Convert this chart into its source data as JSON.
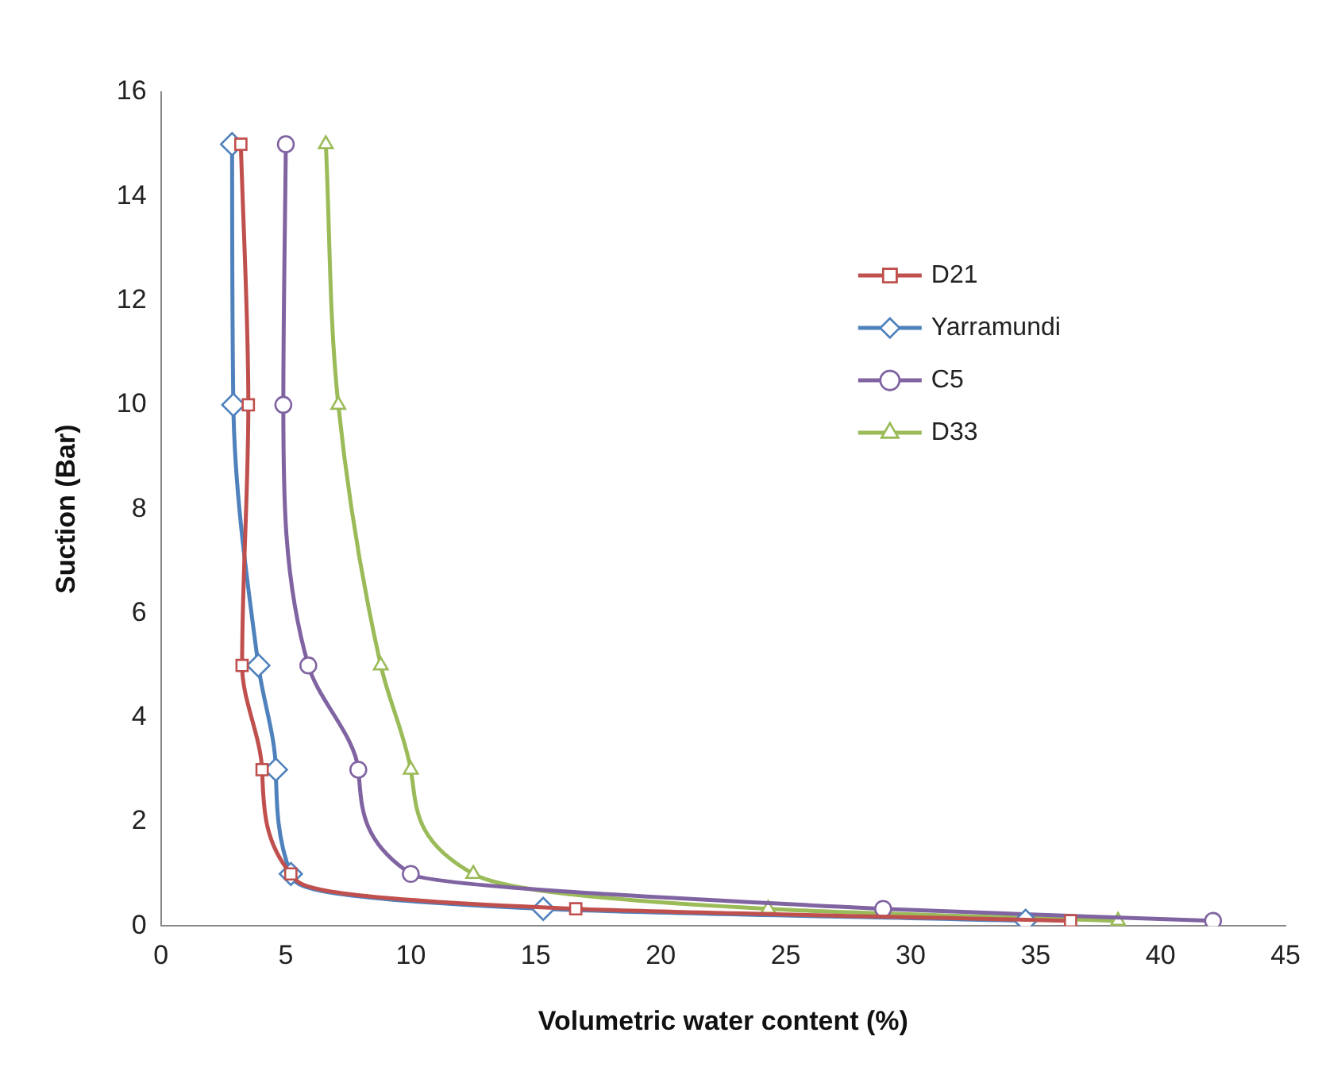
{
  "chart_data": {
    "type": "line",
    "xlabel": "Volumetric water content (%)",
    "ylabel": "Suction (Bar)",
    "xlim": [
      0,
      45
    ],
    "xticks": [
      0,
      5,
      10,
      15,
      20,
      25,
      30,
      35,
      40,
      45
    ],
    "ylim": [
      0,
      16
    ],
    "yticks": [
      0,
      2,
      4,
      6,
      8,
      10,
      12,
      14,
      16
    ],
    "grid": false,
    "legend": "right",
    "series": [
      {
        "name": "D21",
        "color": "#c0504d",
        "marker": "square",
        "x": [
          3.2,
          3.5,
          3.25,
          4.05,
          5.2,
          16.6,
          36.4
        ],
        "values": [
          15,
          10,
          5,
          3,
          1,
          0.33,
          0.1
        ]
      },
      {
        "name": "Yarramundi",
        "color": "#4f81bd",
        "marker": "diamond",
        "x": [
          2.85,
          2.9,
          3.9,
          4.6,
          5.2,
          15.3,
          34.6
        ],
        "values": [
          15,
          10,
          5,
          3,
          1,
          0.33,
          0.1
        ]
      },
      {
        "name": "C5",
        "color": "#8064a2",
        "marker": "circle",
        "x": [
          5.0,
          4.9,
          5.9,
          7.9,
          10.0,
          28.9,
          42.1
        ],
        "values": [
          15,
          10,
          5,
          3,
          1,
          0.33,
          0.1
        ]
      },
      {
        "name": "D33",
        "color": "#9bbb59",
        "marker": "triangle",
        "x": [
          6.6,
          7.1,
          8.8,
          10.0,
          12.5,
          24.3,
          38.3
        ],
        "values": [
          15,
          10,
          5,
          3,
          1,
          0.33,
          0.1
        ]
      }
    ]
  }
}
